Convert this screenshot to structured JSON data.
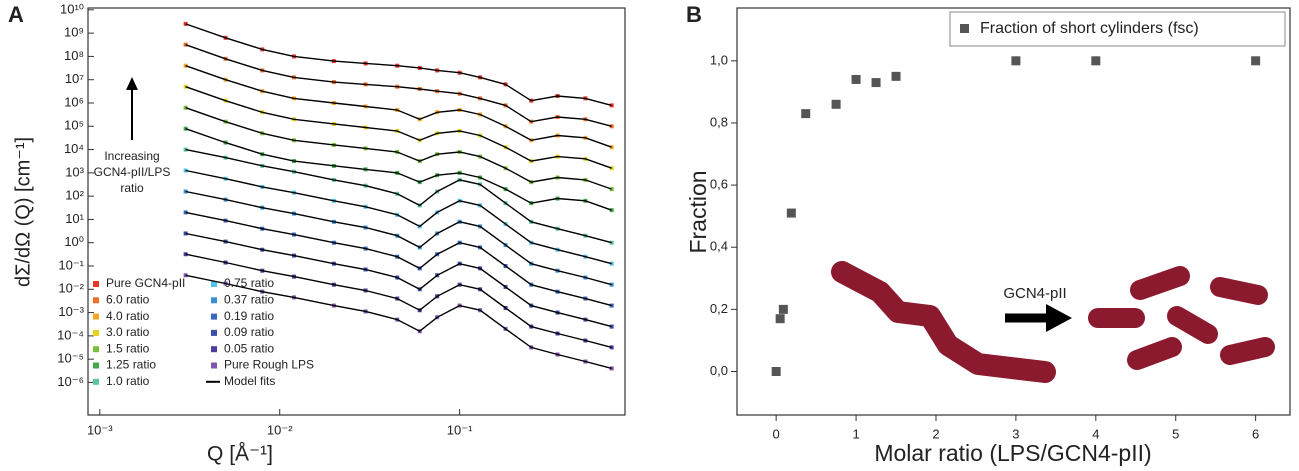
{
  "chart_data": [
    {
      "type": "line",
      "panel": "A",
      "xlabel": "Q [Å⁻¹]",
      "ylabel": "dΣ/dΩ (Q) [cm⁻¹]",
      "log_x": true,
      "log_y": true,
      "annotation": [
        "Increasing",
        "GCN4-pII/LPS",
        "ratio"
      ],
      "fit_label": "Model fits",
      "fit_color": "#000000",
      "xlim": [
        0.00086,
        0.83
      ],
      "ylim": [
        4e-08,
        12000000000.0
      ],
      "xticks": [
        {
          "value": 0.001,
          "label": "10⁻³"
        },
        {
          "value": 0.01,
          "label": "10⁻²"
        },
        {
          "value": 0.1,
          "label": "10⁻¹"
        }
      ],
      "yticks": [
        {
          "value": 1e-06,
          "label": "10⁻⁶"
        },
        {
          "value": 1e-05,
          "label": "10⁻⁵"
        },
        {
          "value": 0.0001,
          "label": "10⁻⁴"
        },
        {
          "value": 0.001,
          "label": "10⁻³"
        },
        {
          "value": 0.01,
          "label": "10⁻²"
        },
        {
          "value": 0.1,
          "label": "10⁻¹"
        },
        {
          "value": 1,
          "label": "10⁰"
        },
        {
          "value": 10,
          "label": "10¹"
        },
        {
          "value": 100,
          "label": "10²"
        },
        {
          "value": 1000.0,
          "label": "10³"
        },
        {
          "value": 10000.0,
          "label": "10⁴"
        },
        {
          "value": 100000.0,
          "label": "10⁵"
        },
        {
          "value": 1000000.0,
          "label": "10⁶"
        },
        {
          "value": 10000000.0,
          "label": "10⁷"
        },
        {
          "value": 100000000.0,
          "label": "10⁸"
        },
        {
          "value": 1000000000.0,
          "label": "10⁹"
        },
        {
          "value": 10000000000.0,
          "label": "10¹⁰"
        }
      ],
      "x": [
        0.003,
        0.005,
        0.008,
        0.012,
        0.02,
        0.03,
        0.045,
        0.06,
        0.075,
        0.1,
        0.13,
        0.18,
        0.25,
        0.35,
        0.5,
        0.7
      ],
      "series": [
        {
          "name": "Pure GCN4-pII",
          "color": "#e8372a",
          "values": [
            2500000000.0,
            630000000.0,
            200000000.0,
            100000000.0,
            63000000.0,
            50000000.0,
            40000000.0,
            32000000.0,
            25000000.0,
            20000000.0,
            12600000.0,
            6300000.0,
            1260000.0,
            2000000.0,
            1580000.0,
            790000.0
          ]
        },
        {
          "name": "6.0 ratio",
          "color": "#f0702a",
          "values": [
            320000000.0,
            79000000.0,
            25000000.0,
            12600000.0,
            7900000.0,
            6300000.0,
            5000000.0,
            4000000.0,
            3200000.0,
            2500000.0,
            1580000.0,
            790000.0,
            158000.0,
            250000.0,
            200000.0,
            100000.0
          ]
        },
        {
          "name": "4.0 ratio",
          "color": "#f5a623",
          "values": [
            40000000.0,
            10000000.0,
            3200000.0,
            1580000.0,
            1000000.0,
            710000.0,
            500000.0,
            200000.0,
            400000.0,
            500000.0,
            320000.0,
            100000.0,
            25000.0,
            40000.0,
            32000.0,
            12600.0
          ]
        },
        {
          "name": "3.0 ratio",
          "color": "#e3d41c",
          "values": [
            5000000.0,
            1260000.0,
            400000.0,
            200000.0,
            126000.0,
            89000.0,
            63000.0,
            25000.0,
            50000.0,
            63000.0,
            40000.0,
            12600.0,
            3200.0,
            5000.0,
            4000.0,
            1580.0
          ]
        },
        {
          "name": "1.5 ratio",
          "color": "#7cbf3a",
          "values": [
            630000.0,
            158000.0,
            50000.0,
            25000.0,
            15800.0,
            11200.0,
            7900.0,
            3200.0,
            6300.0,
            7900.0,
            5000.0,
            1580.0,
            400,
            630,
            500,
            200
          ]
        },
        {
          "name": "1.25 ratio",
          "color": "#3faa4a",
          "values": [
            79000.0,
            20000.0,
            6300.0,
            3200.0,
            2000.0,
            1410.0,
            1000.0,
            400,
            790,
            1000.0,
            630,
            200,
            50,
            79,
            63,
            25
          ]
        },
        {
          "name": "1.0 ratio",
          "color": "#5cc4a0",
          "values": [
            10000.0,
            4500.0,
            2000.0,
            1120.0,
            500,
            280,
            126,
            40,
            158,
            500,
            320,
            50,
            7.9,
            4,
            2,
            1
          ]
        },
        {
          "name": "0.75 ratio",
          "color": "#4fc3e8",
          "values": [
            1260.0,
            560,
            250,
            141,
            63,
            35,
            15.8,
            5,
            20,
            63,
            40,
            6.3,
            1,
            0.5,
            0.25,
            0.126
          ]
        },
        {
          "name": "0.37 ratio",
          "color": "#3a8fd0",
          "values": [
            158,
            71,
            32,
            17.8,
            7.9,
            4.5,
            2,
            0.63,
            2.5,
            7.9,
            5,
            0.79,
            0.126,
            0.063,
            0.032,
            0.0158
          ]
        },
        {
          "name": "0.19 ratio",
          "color": "#3a68c0",
          "values": [
            20,
            8.9,
            4,
            2.24,
            1,
            0.56,
            0.25,
            0.079,
            0.32,
            1,
            0.63,
            0.1,
            0.0158,
            0.0079,
            0.004,
            0.002
          ]
        },
        {
          "name": "0.09 ratio",
          "color": "#3b4fa8",
          "values": [
            2.5,
            1.12,
            0.5,
            0.28,
            0.126,
            0.071,
            0.032,
            0.01,
            0.04,
            0.126,
            0.079,
            0.0126,
            0.002,
            0.001,
            0.0005,
            0.00025
          ]
        },
        {
          "name": "0.05 ratio",
          "color": "#4a3f9e",
          "values": [
            0.32,
            0.141,
            0.063,
            0.035,
            0.0158,
            0.0089,
            0.004,
            0.00126,
            0.005,
            0.0158,
            0.01,
            0.00158,
            0.00025,
            0.000126,
            6.3e-05,
            3.2e-05
          ]
        },
        {
          "name": "Pure Rough LPS",
          "color": "#8055ad",
          "values": [
            0.04,
            0.0178,
            0.0079,
            0.0045,
            0.002,
            0.00112,
            0.0005,
            0.000158,
            0.00063,
            0.002,
            0.00126,
            0.0002,
            3.2e-05,
            1.58e-05,
            7.9e-06,
            4e-06
          ]
        }
      ]
    },
    {
      "type": "scatter",
      "panel": "B",
      "xlabel": "Molar ratio (LPS/GCN4-pII)",
      "ylabel": "Fraction",
      "illustration_label": "GCN4-pII",
      "xlim": [
        -0.49,
        6.43
      ],
      "ylim": [
        -0.14,
        1.17
      ],
      "xticks": [
        0,
        1,
        2,
        3,
        4,
        5,
        6
      ],
      "yticks": [
        {
          "value": 0,
          "label": "0,0"
        },
        {
          "value": 0.2,
          "label": "0,2"
        },
        {
          "value": 0.4,
          "label": "0,4"
        },
        {
          "value": 0.6,
          "label": "0,6"
        },
        {
          "value": 0.8,
          "label": "0,8"
        },
        {
          "value": 1,
          "label": "1,0"
        }
      ],
      "series": [
        {
          "name": "Fraction of short cylinders (fsc)",
          "color": "#555555",
          "x": [
            0,
            0.05,
            0.09,
            0.19,
            0.37,
            0.75,
            1.0,
            1.25,
            1.5,
            3,
            4,
            6
          ],
          "values": [
            0,
            0.17,
            0.2,
            0.51,
            0.83,
            0.86,
            0.94,
            0.93,
            0.95,
            1.0,
            1.0,
            1.0
          ]
        }
      ]
    }
  ]
}
